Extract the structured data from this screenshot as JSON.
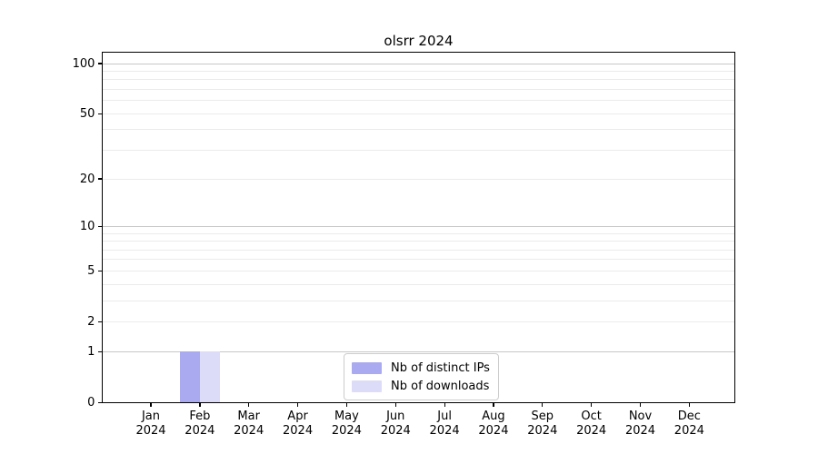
{
  "chart_data": {
    "type": "bar",
    "title": "olsrr 2024",
    "categories": [
      "Jan",
      "Feb",
      "Mar",
      "Apr",
      "May",
      "Jun",
      "Jul",
      "Aug",
      "Sep",
      "Oct",
      "Nov",
      "Dec"
    ],
    "category_year": "2024",
    "series": [
      {
        "name": "Nb of distinct IPs",
        "color": "#aaaaf0",
        "values": [
          0,
          1,
          0,
          0,
          0,
          0,
          0,
          0,
          0,
          0,
          0,
          0
        ]
      },
      {
        "name": "Nb of downloads",
        "color": "#dcdcf8",
        "values": [
          0,
          1,
          0,
          0,
          0,
          0,
          0,
          0,
          0,
          0,
          0,
          0
        ]
      }
    ],
    "xlabel": "",
    "ylabel": "",
    "yscale": "log1p",
    "ylim": [
      0,
      117
    ],
    "y_major_ticks": [
      0,
      1,
      2,
      5,
      10,
      20,
      50,
      100
    ],
    "y_tick_labels": [
      "0",
      "1",
      "2",
      "5",
      "10",
      "20",
      "50",
      "100"
    ],
    "y_gridlines_dark": [
      1,
      10,
      100
    ],
    "y_gridlines_light": [
      2,
      3,
      4,
      5,
      6,
      7,
      8,
      9,
      20,
      30,
      40,
      50,
      60,
      70,
      80,
      90
    ],
    "grid": "horizontal-only",
    "legend_position": "lower center",
    "colors": {
      "background": "#ffffff",
      "spine": "#000000",
      "text": "#000000",
      "grid_dark": "#c8c8c8",
      "grid_light": "#ebebeb",
      "legend_border": "#cccccc"
    }
  }
}
